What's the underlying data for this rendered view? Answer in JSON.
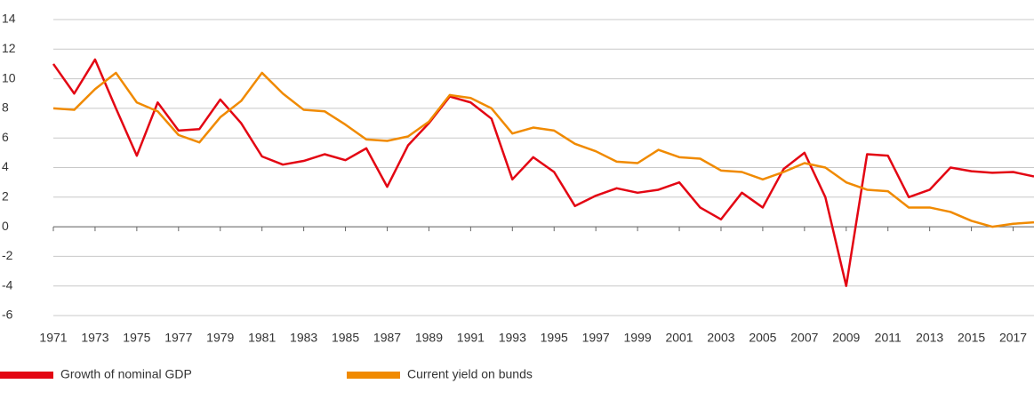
{
  "chart_data": {
    "type": "line",
    "x": [
      1971,
      1972,
      1973,
      1974,
      1975,
      1976,
      1977,
      1978,
      1979,
      1980,
      1981,
      1982,
      1983,
      1984,
      1985,
      1986,
      1987,
      1988,
      1989,
      1990,
      1991,
      1992,
      1993,
      1994,
      1995,
      1996,
      1997,
      1998,
      1999,
      2000,
      2001,
      2002,
      2003,
      2004,
      2005,
      2006,
      2007,
      2008,
      2009,
      2010,
      2011,
      2012,
      2013,
      2014,
      2015,
      2016,
      2017,
      2018
    ],
    "series": [
      {
        "name": "Growth of nominal GDP",
        "color": "#e30613",
        "values": [
          11.0,
          9.0,
          11.3,
          8.0,
          4.8,
          8.4,
          6.5,
          6.6,
          8.6,
          7.0,
          4.75,
          4.2,
          4.45,
          4.9,
          4.5,
          5.3,
          2.7,
          5.5,
          7.0,
          8.8,
          8.4,
          7.3,
          3.2,
          4.7,
          3.7,
          1.4,
          2.1,
          2.6,
          2.3,
          2.5,
          3.0,
          1.3,
          0.5,
          2.3,
          1.3,
          3.9,
          5.0,
          2.0,
          -4.0,
          4.9,
          4.8,
          2.0,
          2.5,
          4.0,
          3.75,
          3.65,
          3.7,
          3.4
        ]
      },
      {
        "name": "Current yield on bunds",
        "color": "#f08a00",
        "values": [
          8.0,
          7.9,
          9.3,
          10.4,
          8.4,
          7.8,
          6.2,
          5.7,
          7.4,
          8.5,
          10.4,
          9.0,
          7.9,
          7.8,
          6.9,
          5.9,
          5.8,
          6.1,
          7.1,
          8.9,
          8.7,
          8.0,
          6.3,
          6.7,
          6.5,
          5.6,
          5.1,
          4.4,
          4.3,
          5.2,
          4.7,
          4.6,
          3.8,
          3.7,
          3.2,
          3.7,
          4.3,
          4.0,
          3.0,
          2.5,
          2.4,
          1.3,
          1.3,
          1.0,
          0.4,
          0.0,
          0.2,
          0.3
        ]
      }
    ],
    "xlim": [
      1971,
      2018
    ],
    "xticks": [
      1971,
      1973,
      1975,
      1977,
      1979,
      1981,
      1983,
      1985,
      1987,
      1989,
      1991,
      1993,
      1995,
      1997,
      1999,
      2001,
      2003,
      2005,
      2007,
      2009,
      2011,
      2013,
      2015,
      2017
    ],
    "ylim": [
      -6,
      14
    ],
    "yticks": [
      -6,
      -4,
      -2,
      0,
      2,
      4,
      6,
      8,
      10,
      12,
      14
    ],
    "grid": true
  }
}
